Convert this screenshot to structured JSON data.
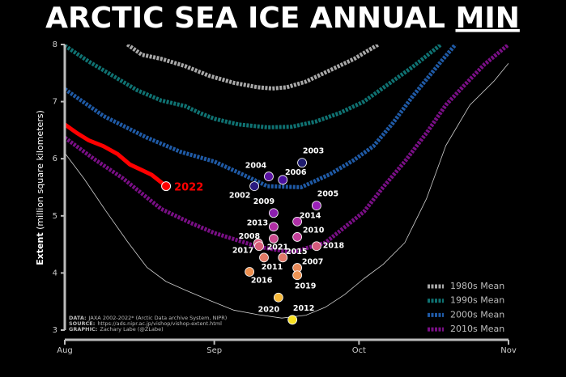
{
  "chart_data": {
    "type": "line",
    "title": {
      "text": "ARCTIC SEA ICE ANNUAL",
      "emphasis": "MIN"
    },
    "ylabel": {
      "bold": "Extent",
      "rest": "(million square kilometers)"
    },
    "xlim": [
      0,
      92
    ],
    "xticks": [
      {
        "value": 0,
        "label": "Aug"
      },
      {
        "value": 31,
        "label": "Sep"
      },
      {
        "value": 61,
        "label": "Oct"
      },
      {
        "value": 92,
        "label": "Nov"
      }
    ],
    "ylim": [
      3,
      8
    ],
    "yticks": [
      3,
      4,
      5,
      6,
      7,
      8
    ],
    "legend": "lower right",
    "series": [
      {
        "name": "1980s Mean",
        "color": "#a8a8a8",
        "dash": true,
        "x": [
          13,
          16,
          20,
          25,
          30,
          35,
          40,
          43,
          46,
          50,
          55,
          60,
          65
        ],
        "values": [
          8,
          7.82,
          7.75,
          7.62,
          7.45,
          7.33,
          7.25,
          7.23,
          7.25,
          7.35,
          7.55,
          7.75,
          8
        ]
      },
      {
        "name": "1990s Mean",
        "color": "#0f7272",
        "dash": true,
        "x": [
          0,
          5,
          10,
          15,
          20,
          25,
          26,
          28,
          31,
          36,
          42,
          47,
          52,
          57,
          62,
          67,
          72,
          78
        ],
        "values": [
          7.98,
          7.7,
          7.45,
          7.2,
          7.02,
          6.92,
          6.88,
          6.8,
          6.7,
          6.6,
          6.55,
          6.56,
          6.65,
          6.8,
          7.0,
          7.3,
          7.6,
          8.0
        ]
      },
      {
        "name": "2000s Mean",
        "color": "#1f5aa6",
        "dash": true,
        "x": [
          0,
          8,
          17,
          24,
          31,
          37,
          42,
          49,
          55,
          60,
          64,
          68,
          72,
          78,
          81
        ],
        "values": [
          7.22,
          6.75,
          6.37,
          6.12,
          5.95,
          5.72,
          5.52,
          5.5,
          5.73,
          5.98,
          6.22,
          6.62,
          7.08,
          7.7,
          8.0
        ]
      },
      {
        "name": "2010s Mean",
        "color": "#7a0f86",
        "dash": true,
        "x": [
          0,
          6,
          12,
          20,
          26,
          31,
          40,
          47,
          54,
          62,
          66,
          70.5,
          75,
          79,
          83,
          87,
          92
        ],
        "values": [
          6.37,
          6.0,
          5.66,
          5.12,
          4.88,
          4.7,
          4.46,
          4.36,
          4.53,
          5.07,
          5.5,
          5.95,
          6.45,
          6.94,
          7.3,
          7.65,
          8.0
        ]
      },
      {
        "x": [
          0,
          4,
          8.4,
          13,
          17,
          21,
          25,
          30,
          35,
          40,
          45,
          50,
          54,
          58,
          62,
          66,
          70.5,
          75,
          79,
          84,
          89,
          92
        ],
        "color": "#d0d0d0",
        "dash": false,
        "values": [
          6.1,
          5.65,
          5.1,
          4.55,
          4.1,
          3.85,
          3.7,
          3.52,
          3.35,
          3.27,
          3.21,
          3.26,
          3.4,
          3.62,
          3.9,
          4.15,
          4.53,
          5.3,
          6.23,
          6.94,
          7.36,
          7.67
        ]
      },
      {
        "name": "2022",
        "color": "#ff0000",
        "dash": false,
        "x": [
          0,
          2.5,
          5,
          8,
          11,
          13.5,
          16,
          18,
          21
        ],
        "values": [
          6.6,
          6.45,
          6.32,
          6.22,
          6.08,
          5.9,
          5.8,
          5.72,
          5.52
        ]
      }
    ],
    "minima": {
      "labels": [
        "2003",
        "2004",
        "2006",
        "2002",
        "2005",
        "2009",
        "2014",
        "2013",
        "2010",
        "2008",
        "2017",
        "2021",
        "2018",
        "2015",
        "2011",
        "2007",
        "2016",
        "2019",
        "2020",
        "2012"
      ],
      "x": [
        49.2,
        42.3,
        45.2,
        39.3,
        52.2,
        43.3,
        48.2,
        43.3,
        48.2,
        40.1,
        40.3,
        43.3,
        52.2,
        45.2,
        41.3,
        48.2,
        38.3,
        48.2,
        44.3,
        47.2
      ],
      "values": [
        5.93,
        5.69,
        5.63,
        5.52,
        5.18,
        5.05,
        4.9,
        4.81,
        4.63,
        4.52,
        4.47,
        4.6,
        4.47,
        4.27,
        4.27,
        4.09,
        4.02,
        3.96,
        3.57,
        3.18
      ],
      "colors": [
        "#1e1b6e",
        "#5a12a0",
        "#4a10a0",
        "#2a1c80",
        "#9a20b8",
        "#8c1fb0",
        "#b030a8",
        "#b02fa5",
        "#c4409a",
        "#d65a80",
        "#d86078",
        "#c8488c",
        "#d45a7c",
        "#e07868",
        "#e07a66",
        "#e88a5a",
        "#ee9050",
        "#ee9454",
        "#f6b83a",
        "#f8e020"
      ]
    },
    "notes": [
      {
        "key": "DATA:",
        "text": "JAXA 2002-2022* (Arctic Data archive System, NIPR)"
      },
      {
        "key": "SOURCE:",
        "text": "https://ads.nipr.ac.jp/vishop/vishop-extent.html"
      },
      {
        "key": "GRAPHIC:",
        "text": "Zachary Labe (@ZLabe)"
      }
    ]
  }
}
